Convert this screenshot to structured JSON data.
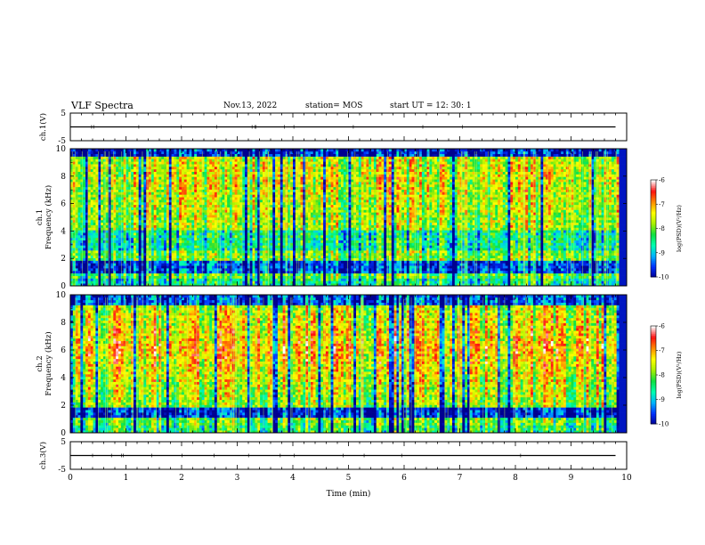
{
  "header": {
    "title": "VLF Spectra",
    "date": "Nov.13, 2022",
    "station": "station= MOS",
    "start_ut": "start  UT =   12: 30: 1"
  },
  "chart_data": [
    {
      "type": "line",
      "panel": "ch1-waveform",
      "ylabel": "ch.1(V)",
      "yticks": [
        "5",
        "-5"
      ],
      "ylim": [
        -5,
        5
      ],
      "xlim": [
        0,
        10
      ],
      "x": [
        0,
        9.8
      ],
      "values": [
        0,
        0
      ]
    },
    {
      "type": "heatmap",
      "panel": "ch1-spectrogram",
      "ylabel": "ch.1 Frequency (kHz)",
      "yticks": [
        "0",
        "2",
        "4",
        "6",
        "8",
        "10"
      ],
      "ylim": [
        0,
        10
      ],
      "xlim": [
        0,
        10
      ],
      "colorbar": {
        "label": "log(PSD)(V²/Hz)",
        "ticks": [
          "-6",
          "-7",
          "-8",
          "-9",
          "-10"
        ],
        "range": [
          -10,
          -6
        ]
      }
    },
    {
      "type": "heatmap",
      "panel": "ch2-spectrogram",
      "ylabel": "ch.2 Frequency (kHz)",
      "yticks": [
        "0",
        "2",
        "4",
        "6",
        "8",
        "10"
      ],
      "ylim": [
        0,
        10
      ],
      "xlim": [
        0,
        10
      ],
      "colorbar": {
        "label": "log(PSD)(V²/Hz)",
        "ticks": [
          "-6",
          "-7",
          "-8",
          "-9",
          "-10"
        ],
        "range": [
          -10,
          -6
        ]
      }
    },
    {
      "type": "line",
      "panel": "ch3-waveform",
      "ylabel": "ch.3(V)",
      "yticks": [
        "5",
        "-5"
      ],
      "ylim": [
        -5,
        5
      ],
      "xlim": [
        0,
        10
      ],
      "x": [
        0,
        9.8
      ],
      "values": [
        0,
        0
      ]
    }
  ],
  "xaxis": {
    "label": "Time  (min)",
    "ticks": [
      "0",
      "1",
      "2",
      "3",
      "4",
      "5",
      "6",
      "7",
      "8",
      "9",
      "10"
    ]
  },
  "colors": {
    "colormap": [
      "#000090",
      "#0030ff",
      "#00b4ff",
      "#00ffb0",
      "#10e040",
      "#a8f000",
      "#ffff00",
      "#ff8c00",
      "#ff1010",
      "#ffffff"
    ],
    "axis": "#000000"
  }
}
